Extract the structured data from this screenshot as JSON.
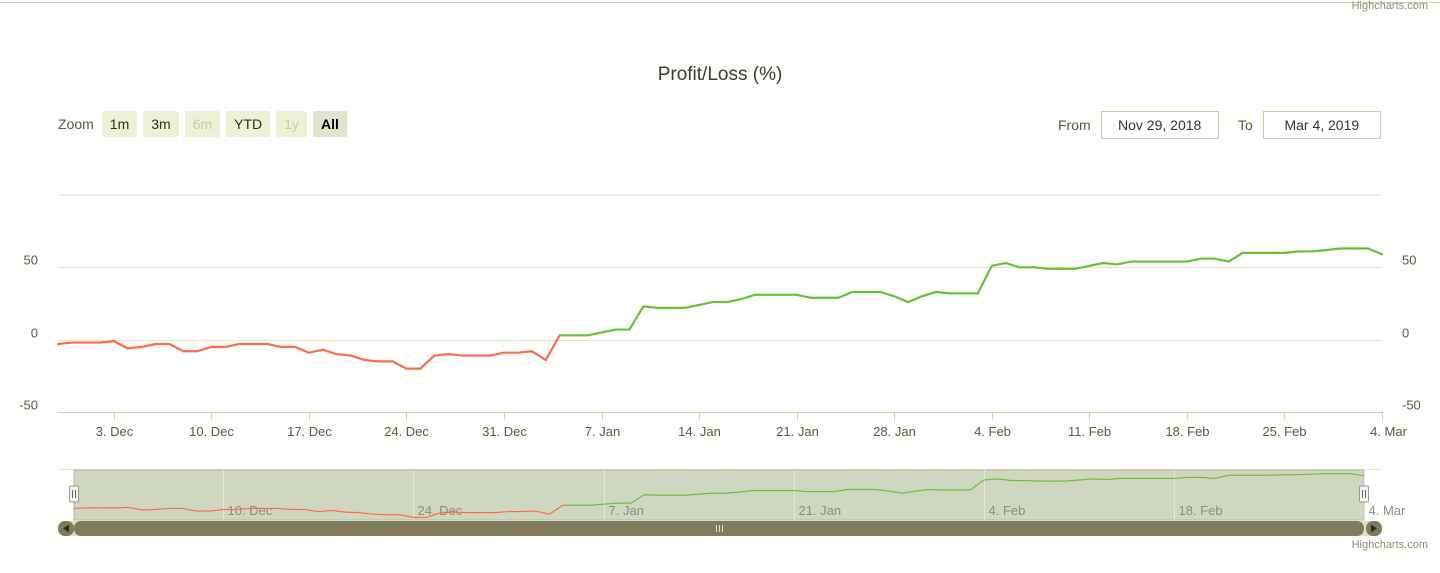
{
  "credits": "Highcharts.com",
  "title": "Profit/Loss (%)",
  "zoom": {
    "label": "Zoom",
    "buttons": [
      {
        "label": "1m",
        "state": "normal"
      },
      {
        "label": "3m",
        "state": "normal"
      },
      {
        "label": "6m",
        "state": "disabled"
      },
      {
        "label": "YTD",
        "state": "normal"
      },
      {
        "label": "1y",
        "state": "disabled"
      },
      {
        "label": "All",
        "state": "active"
      }
    ]
  },
  "range": {
    "from_label": "From",
    "from_value": "Nov 29, 2018",
    "to_label": "To",
    "to_value": "Mar 4, 2019"
  },
  "colors": {
    "negative": "#ff6b4a",
    "positive": "#66c434",
    "grid": "#e3e6c8",
    "axis_text": "#5a5c3a",
    "navigator_mask": "#c8d0b5",
    "scrollbar": "#7f7c5c"
  },
  "chart_data": {
    "type": "line",
    "x_start": "2018-11-29",
    "x_end": "2019-03-04",
    "ylim": [
      -50,
      100
    ],
    "yticks": [
      -50,
      0,
      50
    ],
    "threshold": 0,
    "x_tick_labels": [
      "3. Dec",
      "10. Dec",
      "17. Dec",
      "24. Dec",
      "31. Dec",
      "7. Jan",
      "14. Jan",
      "21. Jan",
      "28. Jan",
      "4. Feb",
      "11. Feb",
      "18. Feb",
      "25. Feb",
      "4. Mar"
    ],
    "x_tick_dates": [
      "2018-12-03",
      "2018-12-10",
      "2018-12-17",
      "2018-12-24",
      "2018-12-31",
      "2019-01-07",
      "2019-01-14",
      "2019-01-21",
      "2019-01-28",
      "2019-02-04",
      "2019-02-11",
      "2019-02-18",
      "2019-02-25",
      "2019-03-04"
    ],
    "navigator_tick_labels": [
      "10. Dec",
      "24. Dec",
      "7. Jan",
      "21. Jan",
      "4. Feb",
      "18. Feb",
      "4. Mar"
    ],
    "navigator_tick_dates": [
      "2018-12-10",
      "2018-12-24",
      "2019-01-07",
      "2019-01-21",
      "2019-02-04",
      "2019-02-18",
      "2019-03-04"
    ],
    "series": [
      {
        "values": [
          [
            "2018-11-29",
            -3
          ],
          [
            "2018-11-30",
            -2
          ],
          [
            "2018-12-01",
            -2
          ],
          [
            "2018-12-02",
            -2
          ],
          [
            "2018-12-03",
            -1
          ],
          [
            "2018-12-04",
            -6
          ],
          [
            "2018-12-05",
            -5
          ],
          [
            "2018-12-06",
            -3
          ],
          [
            "2018-12-07",
            -3
          ],
          [
            "2018-12-08",
            -8
          ],
          [
            "2018-12-09",
            -8
          ],
          [
            "2018-12-10",
            -5
          ],
          [
            "2018-12-11",
            -5
          ],
          [
            "2018-12-12",
            -3
          ],
          [
            "2018-12-13",
            -3
          ],
          [
            "2018-12-14",
            -3
          ],
          [
            "2018-12-15",
            -5
          ],
          [
            "2018-12-16",
            -5
          ],
          [
            "2018-12-17",
            -9
          ],
          [
            "2018-12-18",
            -7
          ],
          [
            "2018-12-19",
            -10
          ],
          [
            "2018-12-20",
            -11
          ],
          [
            "2018-12-21",
            -14
          ],
          [
            "2018-12-22",
            -15
          ],
          [
            "2018-12-23",
            -15
          ],
          [
            "2018-12-24",
            -20
          ],
          [
            "2018-12-25",
            -20
          ],
          [
            "2018-12-26",
            -11
          ],
          [
            "2018-12-27",
            -10
          ],
          [
            "2018-12-28",
            -11
          ],
          [
            "2018-12-29",
            -11
          ],
          [
            "2018-12-30",
            -11
          ],
          [
            "2018-12-31",
            -9
          ],
          [
            "2019-01-01",
            -9
          ],
          [
            "2019-01-02",
            -8
          ],
          [
            "2019-01-03",
            -14
          ],
          [
            "2019-01-04",
            3
          ],
          [
            "2019-01-05",
            3
          ],
          [
            "2019-01-06",
            3
          ],
          [
            "2019-01-07",
            5
          ],
          [
            "2019-01-08",
            7
          ],
          [
            "2019-01-09",
            7
          ],
          [
            "2019-01-10",
            23
          ],
          [
            "2019-01-11",
            22
          ],
          [
            "2019-01-12",
            22
          ],
          [
            "2019-01-13",
            22
          ],
          [
            "2019-01-14",
            24
          ],
          [
            "2019-01-15",
            26
          ],
          [
            "2019-01-16",
            26
          ],
          [
            "2019-01-17",
            28
          ],
          [
            "2019-01-18",
            31
          ],
          [
            "2019-01-19",
            31
          ],
          [
            "2019-01-20",
            31
          ],
          [
            "2019-01-21",
            31
          ],
          [
            "2019-01-22",
            29
          ],
          [
            "2019-01-23",
            29
          ],
          [
            "2019-01-24",
            29
          ],
          [
            "2019-01-25",
            33
          ],
          [
            "2019-01-26",
            33
          ],
          [
            "2019-01-27",
            33
          ],
          [
            "2019-01-28",
            30
          ],
          [
            "2019-01-29",
            26
          ],
          [
            "2019-01-30",
            30
          ],
          [
            "2019-01-31",
            33
          ],
          [
            "2019-02-01",
            32
          ],
          [
            "2019-02-02",
            32
          ],
          [
            "2019-02-03",
            32
          ],
          [
            "2019-02-04",
            51
          ],
          [
            "2019-02-05",
            53
          ],
          [
            "2019-02-06",
            50
          ],
          [
            "2019-02-07",
            50
          ],
          [
            "2019-02-08",
            49
          ],
          [
            "2019-02-09",
            49
          ],
          [
            "2019-02-10",
            49
          ],
          [
            "2019-02-11",
            51
          ],
          [
            "2019-02-12",
            53
          ],
          [
            "2019-02-13",
            52
          ],
          [
            "2019-02-14",
            54
          ],
          [
            "2019-02-15",
            54
          ],
          [
            "2019-02-16",
            54
          ],
          [
            "2019-02-17",
            54
          ],
          [
            "2019-02-18",
            54
          ],
          [
            "2019-02-19",
            56
          ],
          [
            "2019-02-20",
            56
          ],
          [
            "2019-02-21",
            54
          ],
          [
            "2019-02-22",
            60
          ],
          [
            "2019-02-23",
            60
          ],
          [
            "2019-02-24",
            60
          ],
          [
            "2019-02-25",
            60
          ],
          [
            "2019-02-26",
            61
          ],
          [
            "2019-02-27",
            61
          ],
          [
            "2019-02-28",
            62
          ],
          [
            "2019-03-01",
            63
          ],
          [
            "2019-03-02",
            63
          ],
          [
            "2019-03-03",
            63
          ],
          [
            "2019-03-04",
            59
          ]
        ]
      }
    ]
  }
}
